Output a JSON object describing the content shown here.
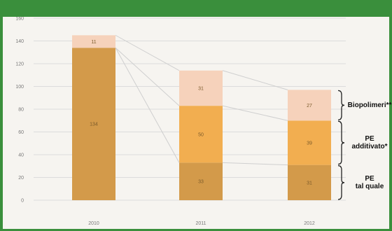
{
  "header": {
    "title": ""
  },
  "colors": {
    "tal_quale": "#d39a4a",
    "additivato": "#f2ae50",
    "biopolimeri": "#f6d2bb",
    "gridline": "#dcdcdc",
    "connector": "#cfcfcf",
    "frame": "#3a8f3c",
    "panel": "#f6f4f0"
  },
  "chart_data": {
    "type": "bar",
    "stacked": true,
    "categories": [
      "2010",
      "2011",
      "2012"
    ],
    "series": [
      {
        "key": "tal_quale",
        "values": [
          134,
          33,
          31
        ],
        "labels": [
          "134",
          "33",
          "31"
        ]
      },
      {
        "key": "additivato",
        "values": [
          0,
          50,
          39
        ],
        "labels": [
          "",
          "50",
          "39"
        ]
      },
      {
        "key": "biopolimeri",
        "values": [
          11,
          31,
          27
        ],
        "labels": [
          "11",
          "31",
          "27"
        ]
      }
    ],
    "ylim": [
      0,
      160
    ],
    "yticks": [
      0,
      20,
      40,
      60,
      80,
      100,
      120,
      140,
      160
    ],
    "grid": true,
    "legend": [
      {
        "key": "biopolimeri",
        "label_lines": [
          "Biopolimeri**"
        ]
      },
      {
        "key": "additivato",
        "label_lines": [
          "PE",
          "additivato*"
        ]
      },
      {
        "key": "tal_quale",
        "label_lines": [
          "PE",
          "tal quale"
        ]
      }
    ]
  }
}
